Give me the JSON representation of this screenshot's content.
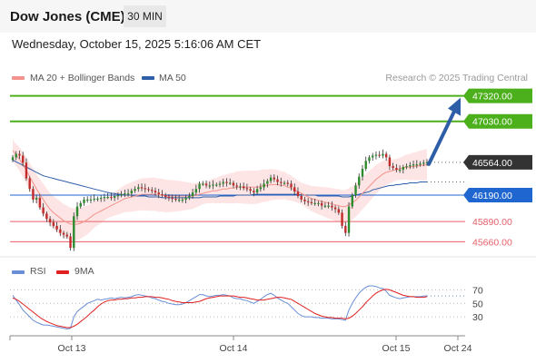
{
  "header": {
    "title": "Dow Jones (CME)",
    "timeframe": "30 MIN"
  },
  "timestamp": "Wednesday, October 15, 2025 5:16:06 AM CET",
  "legend": {
    "ma20": {
      "label": "MA 20 + Bollinger Bands",
      "color": "#f4938c"
    },
    "ma50": {
      "label": "MA 50",
      "color": "#2f5ea8"
    }
  },
  "credit": "Research © 2025 Trading Central",
  "rsi_legend": {
    "rsi": {
      "label": "RSI",
      "color": "#6a8fd6"
    },
    "ma9": {
      "label": "9MA",
      "color": "#e02020"
    }
  },
  "colors": {
    "green_level": "#4caf1c",
    "blue_level": "#1f66d1",
    "red_level": "#e8606a",
    "current_price": "#333333",
    "arrow": "#2f5ea8",
    "bollinger_fill": "#fde0e0",
    "candle_up": "#2d8a2d",
    "candle_down": "#c22b2b"
  },
  "chart_data": [
    {
      "type": "line",
      "title": "Dow Jones (CME) 30 MIN",
      "x_ticks": [
        "Oct 13",
        "Oct 14",
        "Oct 15",
        "Oct 24"
      ],
      "ylim": [
        45560,
        47420
      ],
      "levels": [
        {
          "value": 47320,
          "label": "47320.00",
          "kind": "resistance"
        },
        {
          "value": 47030,
          "label": "47030.00",
          "kind": "resistance"
        },
        {
          "value": 46564,
          "label": "46564.00",
          "kind": "current"
        },
        {
          "value": 46190,
          "label": "46190.00",
          "kind": "pivot"
        },
        {
          "value": 45890,
          "label": "45890.00",
          "kind": "support"
        },
        {
          "value": 45660,
          "label": "45660.00",
          "kind": "support"
        }
      ],
      "price_close": [
        46620,
        46660,
        46640,
        46560,
        46380,
        46260,
        46140,
        46160,
        46050,
        45980,
        45920,
        45880,
        45840,
        45800,
        45760,
        45740,
        45720,
        45590,
        45950,
        46060,
        46100,
        46140,
        46140,
        46140,
        46150,
        46150,
        46160,
        46170,
        46170,
        46160,
        46180,
        46190,
        46200,
        46210,
        46210,
        46240,
        46260,
        46280,
        46270,
        46260,
        46250,
        46240,
        46220,
        46200,
        46190,
        46170,
        46160,
        46150,
        46140,
        46140,
        46140,
        46160,
        46180,
        46220,
        46260,
        46320,
        46320,
        46300,
        46300,
        46310,
        46310,
        46320,
        46340,
        46330,
        46330,
        46300,
        46290,
        46290,
        46270,
        46260,
        46240,
        46220,
        46260,
        46280,
        46320,
        46350,
        46390,
        46370,
        46340,
        46330,
        46330,
        46320,
        46280,
        46230,
        46180,
        46140,
        46120,
        46110,
        46100,
        46100,
        46100,
        46070,
        46070,
        46070,
        46050,
        46030,
        45990,
        45840,
        45760,
        46060,
        46190,
        46300,
        46400,
        46490,
        46580,
        46620,
        46640,
        46650,
        46640,
        46660,
        46620,
        46520,
        46500,
        46480,
        46480,
        46510,
        46520,
        46530,
        46540,
        46540,
        46550,
        46560,
        46564
      ],
      "ma20": [
        46700,
        46650,
        46600,
        46540,
        46470,
        46400,
        46330,
        46260,
        46200,
        46140,
        46080,
        46030,
        45990,
        45960,
        45930,
        45900,
        45880,
        45860,
        45860,
        45860,
        45870,
        45890,
        45910,
        45940,
        45970,
        45990,
        46010,
        46030,
        46050,
        46070,
        46090,
        46110,
        46130,
        46150,
        46160,
        46170,
        46180,
        46190,
        46200,
        46200,
        46200,
        46200,
        46200,
        46190,
        46190,
        46180,
        46180,
        46180,
        46180,
        46180,
        46180,
        46180,
        46180,
        46180,
        46190,
        46200,
        46210,
        46220,
        46230,
        46240,
        46240,
        46250,
        46260,
        46260,
        46270,
        46270,
        46280,
        46280,
        46280,
        46280,
        46280,
        46280,
        46280,
        46290,
        46300,
        46300,
        46310,
        46310,
        46310,
        46300,
        46300,
        46280,
        46270,
        46250,
        46230,
        46210,
        46190,
        46170,
        46150,
        46140,
        46130,
        46120,
        46110,
        46100,
        46090,
        46080,
        46070,
        46060,
        46060,
        46080,
        46100,
        46130,
        46170,
        46210,
        46250,
        46290,
        46330,
        46370,
        46400,
        46430,
        46450,
        46460,
        46470,
        46480,
        46490,
        46500,
        46510,
        46510,
        46520,
        46520,
        46530,
        46530,
        46540
      ],
      "ma50": [
        46590,
        46570,
        46550,
        46530,
        46510,
        46490,
        46470,
        46450,
        46430,
        46410,
        46400,
        46390,
        46380,
        46370,
        46360,
        46350,
        46340,
        46330,
        46320,
        46310,
        46300,
        46290,
        46280,
        46270,
        46260,
        46250,
        46240,
        46230,
        46220,
        46210,
        46210,
        46200,
        46200,
        46190,
        46190,
        46190,
        46180,
        46180,
        46180,
        46180,
        46170,
        46170,
        46170,
        46170,
        46160,
        46160,
        46160,
        46160,
        46160,
        46160,
        46160,
        46160,
        46160,
        46160,
        46160,
        46160,
        46170,
        46170,
        46170,
        46170,
        46170,
        46180,
        46180,
        46180,
        46180,
        46180,
        46190,
        46190,
        46190,
        46190,
        46190,
        46200,
        46200,
        46200,
        46200,
        46200,
        46200,
        46200,
        46200,
        46200,
        46200,
        46200,
        46200,
        46200,
        46200,
        46190,
        46190,
        46190,
        46190,
        46190,
        46180,
        46180,
        46180,
        46180,
        46180,
        46180,
        46180,
        46170,
        46170,
        46170,
        46180,
        46190,
        46200,
        46210,
        46220,
        46230,
        46250,
        46260,
        46270,
        46280,
        46290,
        46300,
        46300,
        46310,
        46310,
        46320,
        46320,
        46330,
        46330,
        46330,
        46340,
        46340,
        46340
      ]
    },
    {
      "type": "line",
      "title": "RSI",
      "y_ticks": [
        70,
        50,
        30
      ],
      "ylim": [
        10,
        80
      ],
      "rsi": [
        62,
        55,
        48,
        40,
        35,
        30,
        25,
        22,
        20,
        18,
        18,
        17,
        16,
        15,
        14,
        13,
        12,
        13,
        30,
        38,
        42,
        46,
        50,
        52,
        54,
        56,
        55,
        56,
        57,
        58,
        57,
        58,
        59,
        58,
        59,
        60,
        62,
        63,
        62,
        61,
        60,
        58,
        57,
        55,
        53,
        52,
        50,
        49,
        48,
        48,
        49,
        51,
        54,
        57,
        60,
        63,
        63,
        61,
        60,
        61,
        62,
        62,
        63,
        62,
        61,
        58,
        57,
        57,
        55,
        54,
        52,
        50,
        53,
        56,
        60,
        63,
        65,
        62,
        58,
        55,
        52,
        50,
        45,
        40,
        35,
        32,
        30,
        30,
        30,
        29,
        29,
        28,
        28,
        28,
        27,
        27,
        27,
        26,
        25,
        40,
        50,
        58,
        65,
        70,
        74,
        76,
        76,
        75,
        73,
        72,
        68,
        62,
        60,
        58,
        57,
        58,
        59,
        60,
        60,
        60,
        60,
        61,
        61
      ],
      "ma9": [
        58,
        56,
        53,
        49,
        45,
        41,
        37,
        33,
        29,
        26,
        23,
        21,
        19,
        17,
        16,
        15,
        14,
        14,
        16,
        19,
        23,
        27,
        31,
        36,
        40,
        45,
        49,
        52,
        54,
        55,
        55,
        56,
        56,
        57,
        57,
        58,
        58,
        59,
        59,
        60,
        60,
        60,
        59,
        59,
        58,
        57,
        56,
        54,
        53,
        52,
        51,
        51,
        51,
        51,
        52,
        53,
        55,
        57,
        58,
        59,
        60,
        61,
        61,
        61,
        61,
        61,
        60,
        59,
        59,
        58,
        57,
        56,
        55,
        55,
        55,
        56,
        57,
        58,
        59,
        59,
        58,
        57,
        56,
        53,
        50,
        47,
        44,
        41,
        38,
        35,
        33,
        31,
        30,
        29,
        29,
        28,
        28,
        28,
        27,
        28,
        31,
        35,
        40,
        45,
        51,
        56,
        61,
        65,
        68,
        70,
        71,
        70,
        68,
        66,
        64,
        62,
        61,
        60,
        60,
        59,
        59,
        59,
        60
      ]
    }
  ]
}
